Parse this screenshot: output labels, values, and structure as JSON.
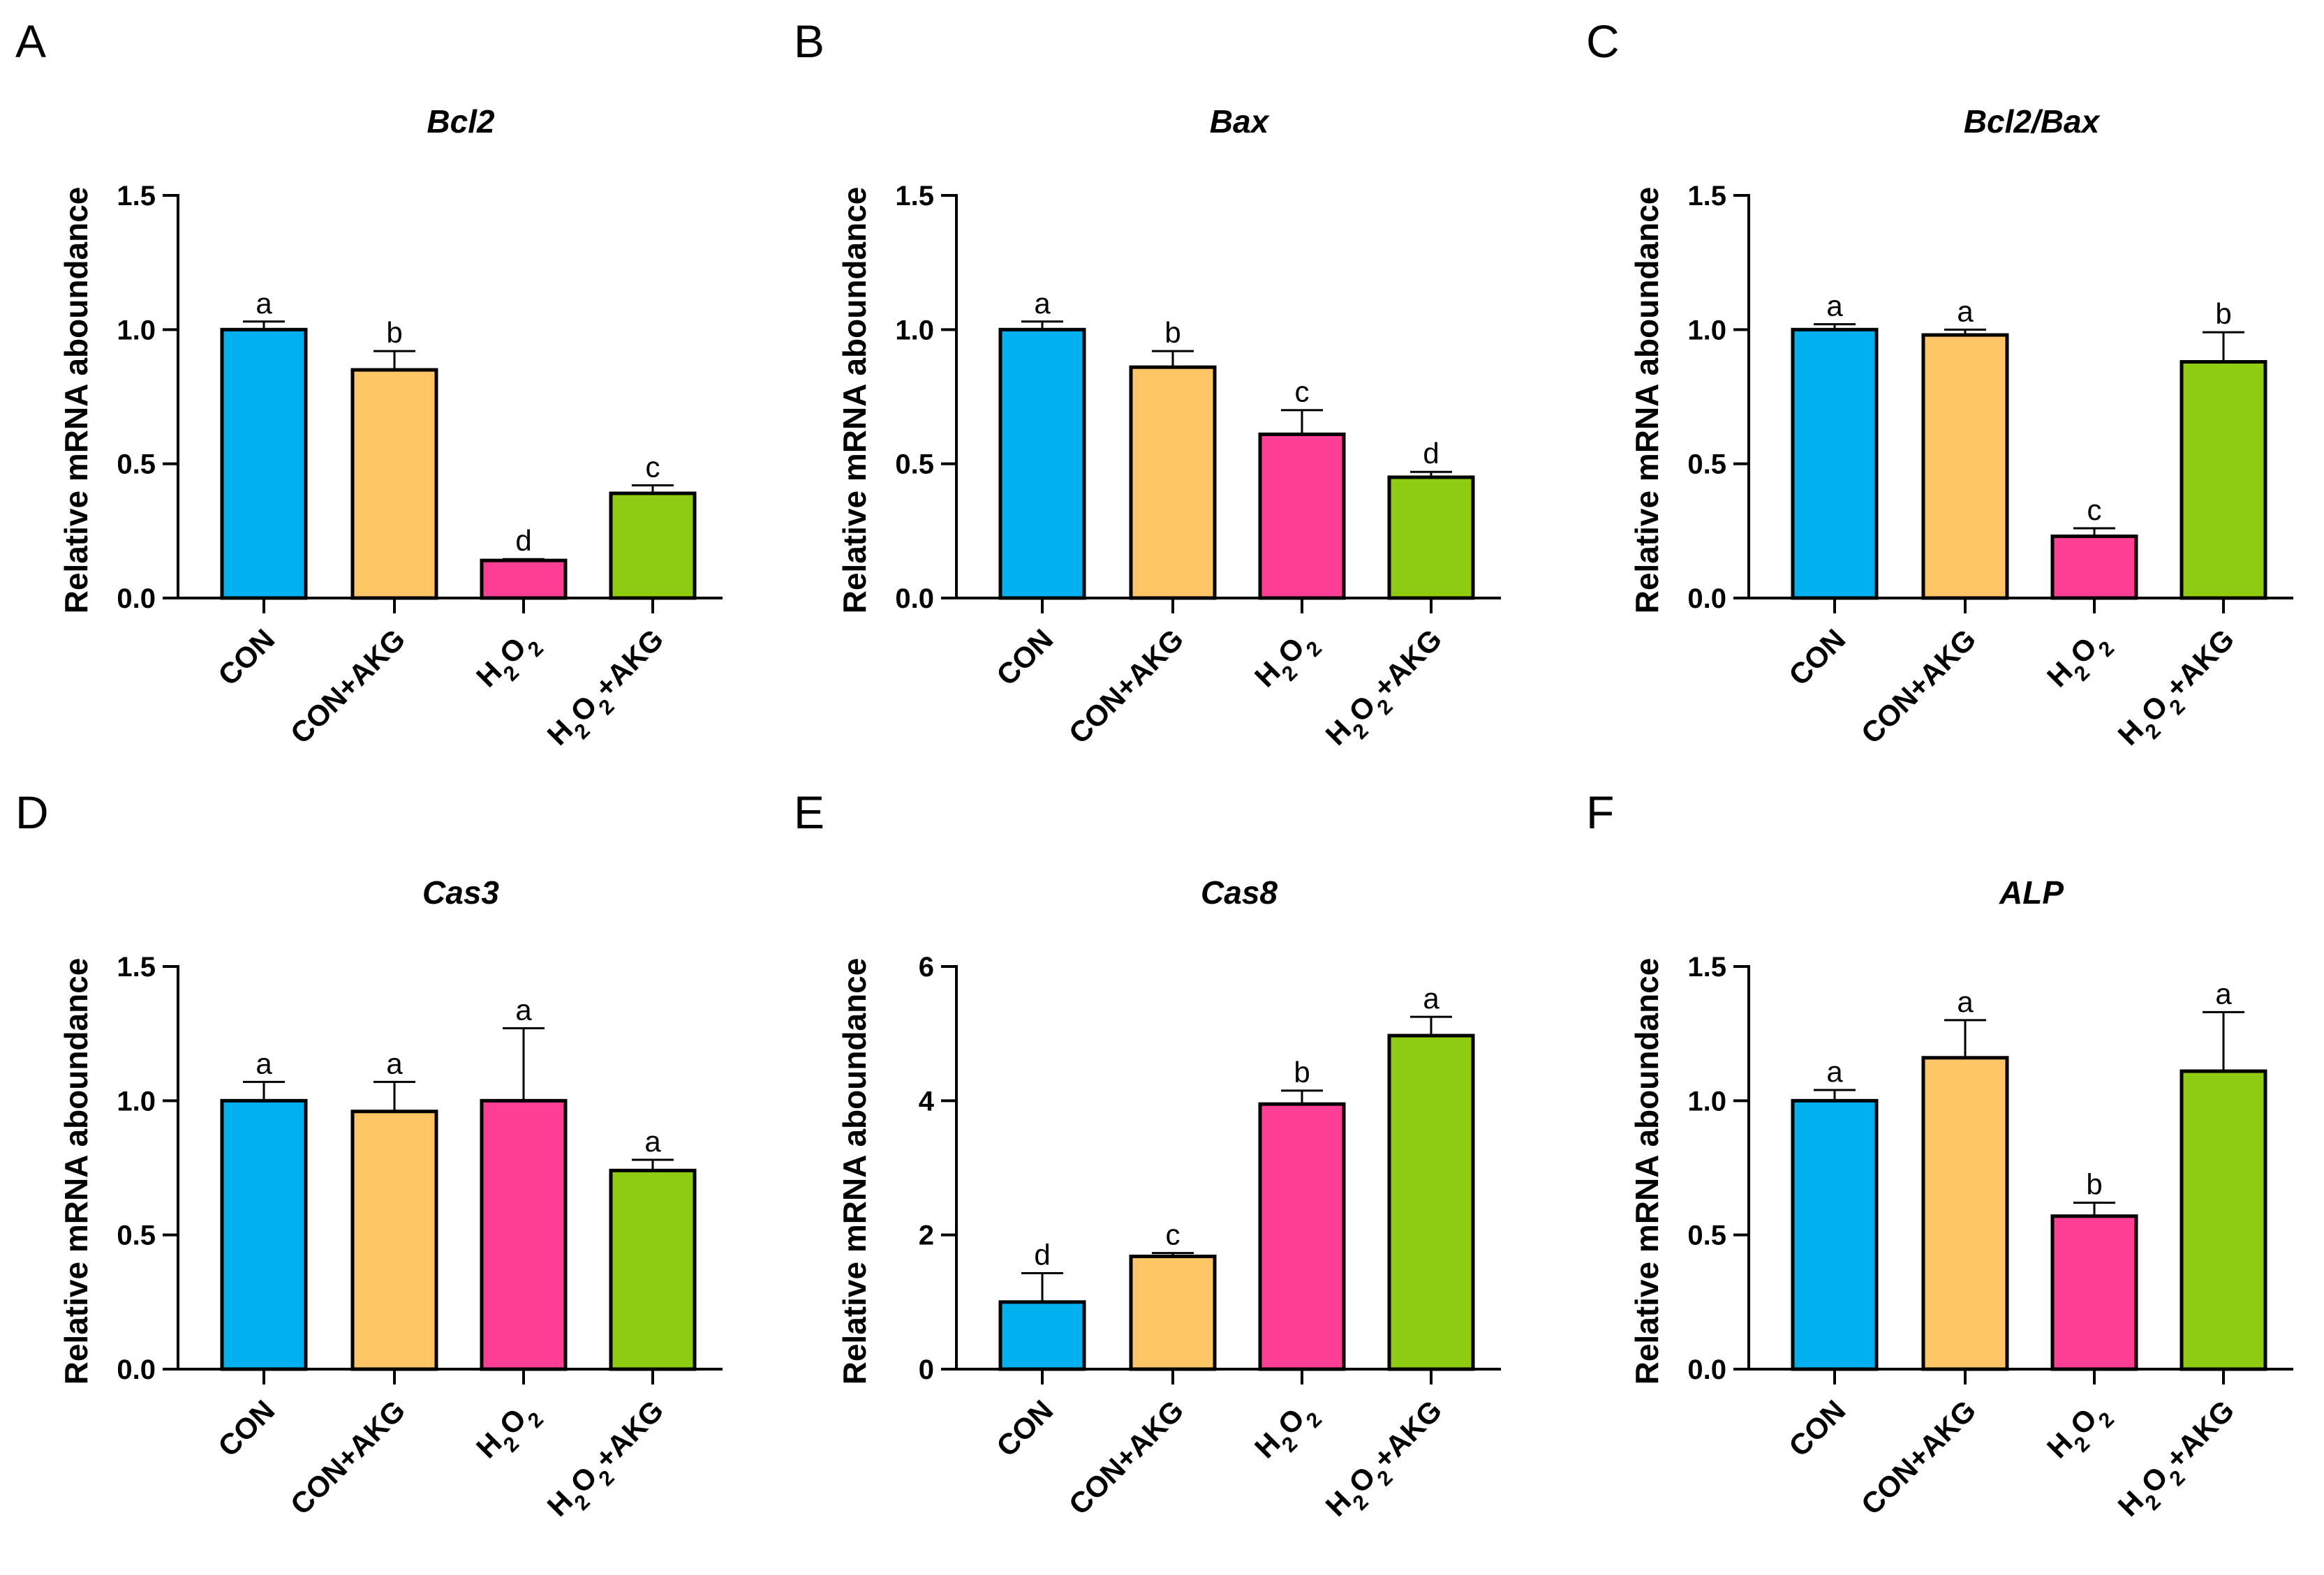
{
  "colors": {
    "CON": "#00b0f0",
    "CON+AKG": "#ffc567",
    "H2O2": "#ff3f95",
    "H2O2+AKG": "#8fcb10"
  },
  "ylabel": "Relative  mRNA aboundance",
  "chart_data": [
    {
      "type": "bar",
      "panel": "A",
      "title": "Bcl2",
      "ylabel": "Relative  mRNA aboundance",
      "categories": [
        "CON",
        "CON+AKG",
        "H2O2",
        "H2O2+AKG"
      ],
      "values": [
        1.0,
        0.85,
        0.14,
        0.39
      ],
      "errors": [
        0.03,
        0.07,
        0.005,
        0.03
      ],
      "letters": [
        "a",
        "b",
        "d",
        "c"
      ],
      "ylim": [
        0,
        1.5
      ],
      "yticks": [
        0.0,
        0.5,
        1.0,
        1.5
      ],
      "ytick_labels": [
        "0.0",
        "0.5",
        "1.0",
        "1.5"
      ]
    },
    {
      "type": "bar",
      "panel": "B",
      "title": "Bax",
      "ylabel": "Relative  mRNA aboundance",
      "categories": [
        "CON",
        "CON+AKG",
        "H2O2",
        "H2O2+AKG"
      ],
      "values": [
        1.0,
        0.86,
        0.61,
        0.45
      ],
      "errors": [
        0.03,
        0.06,
        0.09,
        0.02
      ],
      "letters": [
        "a",
        "b",
        "c",
        "d"
      ],
      "ylim": [
        0,
        1.5
      ],
      "yticks": [
        0.0,
        0.5,
        1.0,
        1.5
      ],
      "ytick_labels": [
        "0.0",
        "0.5",
        "1.0",
        "1.5"
      ]
    },
    {
      "type": "bar",
      "panel": "C",
      "title": "Bcl2/Bax",
      "ylabel": "Relative  mRNA aboundance",
      "categories": [
        "CON",
        "CON+AKG",
        "H2O2",
        "H2O2+AKG"
      ],
      "values": [
        1.0,
        0.98,
        0.23,
        0.88
      ],
      "errors": [
        0.02,
        0.02,
        0.03,
        0.11
      ],
      "letters": [
        "a",
        "a",
        "c",
        "b"
      ],
      "ylim": [
        0,
        1.5
      ],
      "yticks": [
        0.0,
        0.5,
        1.0,
        1.5
      ],
      "ytick_labels": [
        "0.0",
        "0.5",
        "1.0",
        "1.5"
      ]
    },
    {
      "type": "bar",
      "panel": "D",
      "title": "Cas3",
      "ylabel": "Relative  mRNA aboundance",
      "categories": [
        "CON",
        "CON+AKG",
        "H2O2",
        "H2O2+AKG"
      ],
      "values": [
        1.0,
        0.96,
        1.0,
        0.74
      ],
      "errors": [
        0.07,
        0.11,
        0.27,
        0.04
      ],
      "letters": [
        "a",
        "a",
        "a",
        "a"
      ],
      "ylim": [
        0,
        1.5
      ],
      "yticks": [
        0.0,
        0.5,
        1.0,
        1.5
      ],
      "ytick_labels": [
        "0.0",
        "0.5",
        "1.0",
        "1.5"
      ]
    },
    {
      "type": "bar",
      "panel": "E",
      "title": "Cas8",
      "ylabel": "Relative  mRNA aboundance",
      "categories": [
        "CON",
        "CON+AKG",
        "H2O2",
        "H2O2+AKG"
      ],
      "values": [
        1.0,
        1.68,
        3.95,
        4.97
      ],
      "errors": [
        0.43,
        0.05,
        0.2,
        0.28
      ],
      "letters": [
        "d",
        "c",
        "b",
        "a"
      ],
      "ylim": [
        0,
        6
      ],
      "yticks": [
        0,
        2,
        4,
        6
      ],
      "ytick_labels": [
        "0",
        "2",
        "4",
        "6"
      ]
    },
    {
      "type": "bar",
      "panel": "F",
      "title": "ALP",
      "ylabel": "Relative  mRNA aboundance",
      "categories": [
        "CON",
        "CON+AKG",
        "H2O2",
        "H2O2+AKG"
      ],
      "values": [
        1.0,
        1.16,
        0.57,
        1.11
      ],
      "errors": [
        0.04,
        0.14,
        0.05,
        0.22
      ],
      "letters": [
        "a",
        "a",
        "b",
        "a"
      ],
      "ylim": [
        0,
        1.5
      ],
      "yticks": [
        0.0,
        0.5,
        1.0,
        1.5
      ],
      "ytick_labels": [
        "0.0",
        "0.5",
        "1.0",
        "1.5"
      ]
    }
  ]
}
